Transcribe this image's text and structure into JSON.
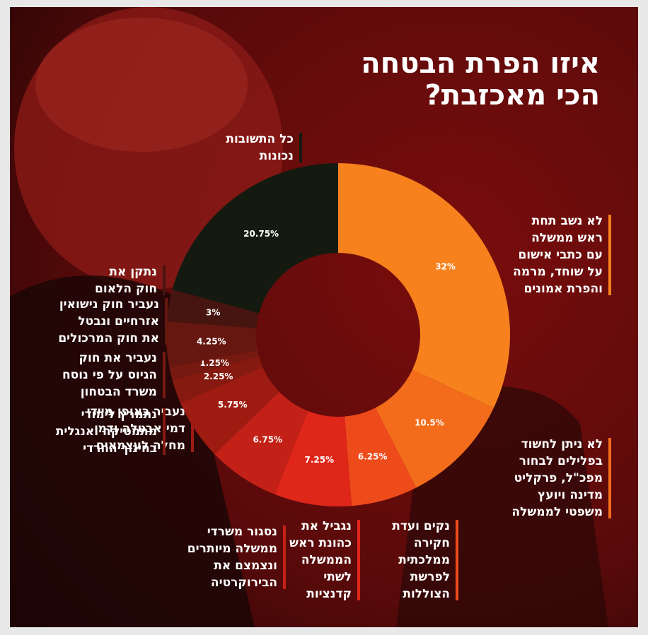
{
  "chart_data": {
    "type": "donut",
    "title": [
      "איזו הפרת הבטחה",
      "הכי מאכזבת?"
    ],
    "categories": [
      [
        "לא נשב תחת",
        "ראש ממשלה",
        "עם כתבי אישום",
        "על שוחד, מרמה",
        "והפרת אמונים"
      ],
      [
        "לא ניתן לחשוד",
        "בפלילים לבחור",
        "מפכ\"ל, פרקליט",
        "מדינה ויועץ",
        "משפטי לממשלה"
      ],
      [
        "נקים ועדת",
        "חקירה",
        "ממלכתית",
        "לפרשת",
        "הצוללות"
      ],
      [
        "נגביל את",
        "כהונת ראש",
        "הממשלה",
        "לשתי",
        "קדנציות"
      ],
      [
        "נסגור משרדי",
        "ממשלה מיותרים",
        "ונצמצם את",
        "הבירוקרטיה"
      ],
      [
        "נעביר באופן מיידי",
        "דמי אבטלה ודמי",
        "מחלה לעצמאים"
      ],
      [
        "נתמרץ לימודי",
        "מתמטיקה ואנגלית",
        "בחינוך החרדי"
      ],
      [
        "נעביר את חוק",
        "הגיוס על פי נוסח",
        "משרד הבטחון"
      ],
      [
        "נעביר חוק נישואין",
        "אזרחיים ונבטל",
        "את חוק המרכולים"
      ],
      [
        "נתקן את",
        "חוק הלאום"
      ],
      [
        "כל התשובות",
        "נכונות"
      ]
    ],
    "values": [
      32,
      10.5,
      6.25,
      7.25,
      6.75,
      5.75,
      2.25,
      1.25,
      4.25,
      3,
      20.75
    ],
    "value_labels": [
      "32%",
      "10.5%",
      "6.25%",
      "7.25%",
      "6.75%",
      "5.75%",
      "2.25%",
      "1.25%",
      "4.25%",
      "3%",
      "20.75%"
    ],
    "colors": [
      "#f7821d",
      "#f36c1b",
      "#ee4b1b",
      "#de2619",
      "#c32117",
      "#9e1b12",
      "#861a10",
      "#761910",
      "#661810",
      "#461510",
      "#141a10"
    ]
  }
}
